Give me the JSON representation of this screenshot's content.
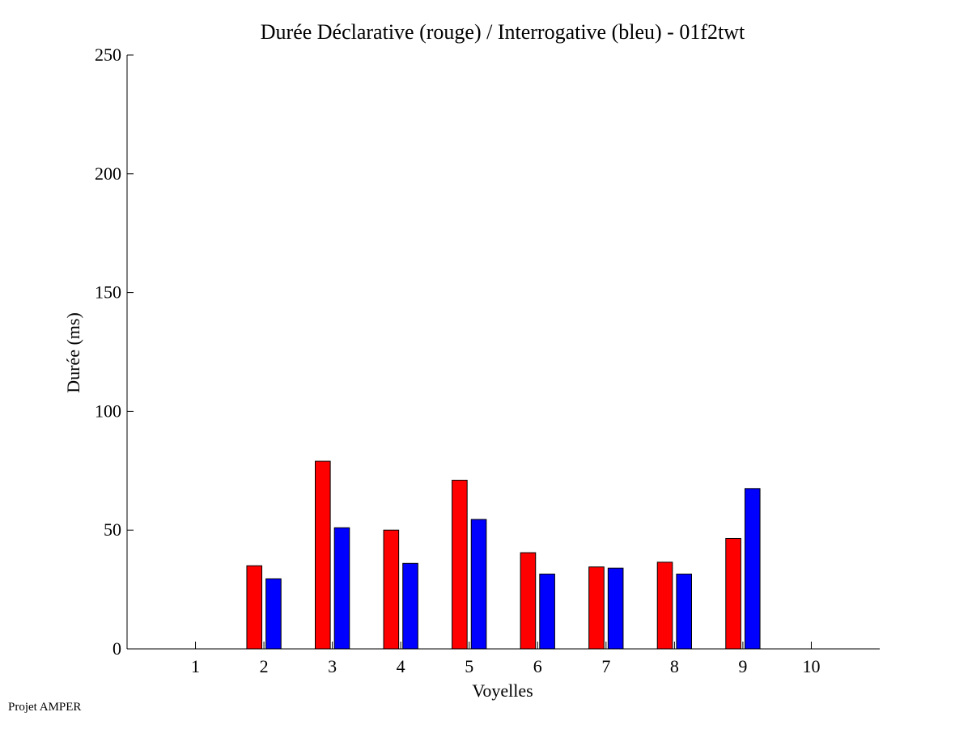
{
  "footer": {
    "text": "Projet AMPER"
  },
  "chart_data": {
    "type": "bar",
    "title": "Durée Déclarative (rouge) / Interrogative (bleu) - 01f2twt",
    "xlabel": "Voyelles",
    "ylabel": "Durée (ms)",
    "categories": [
      "1",
      "2",
      "3",
      "4",
      "5",
      "6",
      "7",
      "8",
      "9",
      "10"
    ],
    "xlim": [
      0,
      11
    ],
    "ylim": [
      0,
      250
    ],
    "yticks": [
      0,
      50,
      100,
      150,
      200,
      250
    ],
    "grid": false,
    "legend": "none",
    "series": [
      {
        "color": "#ff0000",
        "values": [
          null,
          35,
          79,
          50,
          71,
          40.5,
          34.5,
          36.5,
          46.5,
          null
        ]
      },
      {
        "color": "#0000ff",
        "values": [
          null,
          29.5,
          51,
          36,
          54.5,
          31.5,
          34,
          31.5,
          67.5,
          null
        ]
      }
    ]
  }
}
